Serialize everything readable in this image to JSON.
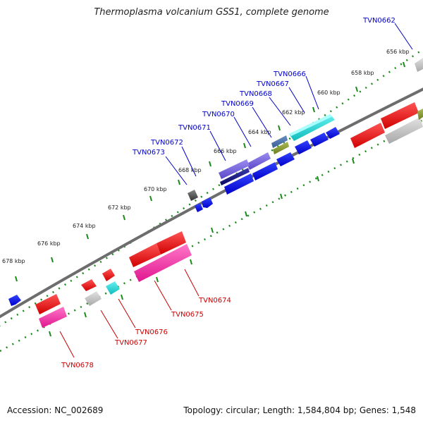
{
  "title": "Thermoplasma volcanium GSS1, complete genome",
  "footer": {
    "accession": "Accession: NC_002689",
    "summary": "Topology: circular; Length: 1,584,804 bp; Genes: 1,548"
  },
  "colors": {
    "backbone": "#808080",
    "tick": "#1a8a1a",
    "label_blue": "#0000cc",
    "label_red": "#cc0000"
  },
  "tick_labels": [
    "656 kbp",
    "658 kbp",
    "660 kbp",
    "662 kbp",
    "664 kbp",
    "666 kbp",
    "668 kbp",
    "670 kbp",
    "672 kbp",
    "674 kbp",
    "676 kbp",
    "678 kbp"
  ],
  "labels_blue": [
    "TVN0662",
    "TVN0666",
    "TVN0667",
    "TVN0668",
    "TVN0669",
    "TVN0670",
    "TVN0671",
    "TVN0672",
    "TVN0673"
  ],
  "labels_red": [
    "TVN0674",
    "TVN0675",
    "TVN0676",
    "TVN0677",
    "TVN0678"
  ]
}
